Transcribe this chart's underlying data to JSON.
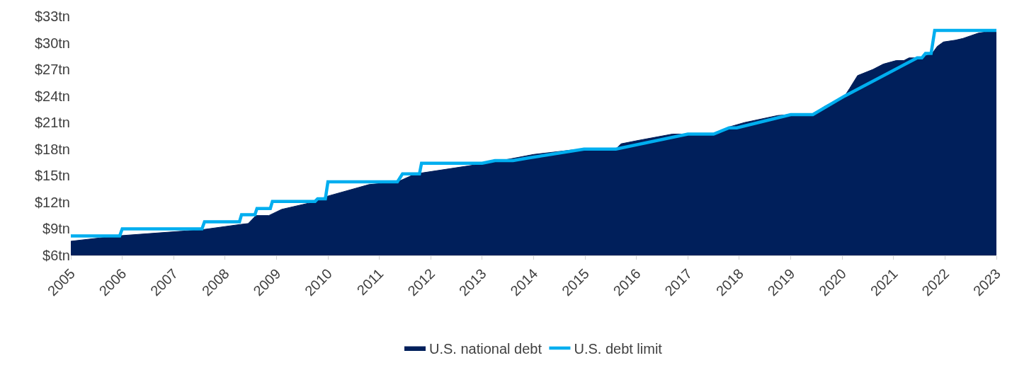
{
  "chart_data": {
    "type": "area",
    "xlim": [
      2005,
      2023
    ],
    "xticks": [
      2005,
      2006,
      2007,
      2008,
      2009,
      2010,
      2011,
      2012,
      2013,
      2014,
      2015,
      2016,
      2017,
      2018,
      2019,
      2020,
      2021,
      2022,
      2023
    ],
    "ylim": [
      6,
      33
    ],
    "yticks": [
      {
        "value": 6,
        "label": "$6tn"
      },
      {
        "value": 9,
        "label": "$9tn"
      },
      {
        "value": 12,
        "label": "$12tn"
      },
      {
        "value": 15,
        "label": "$15tn"
      },
      {
        "value": 18,
        "label": "$18tn"
      },
      {
        "value": 21,
        "label": "$21tn"
      },
      {
        "value": 24,
        "label": "$24tn"
      },
      {
        "value": 27,
        "label": "$27tn"
      },
      {
        "value": 30,
        "label": "$30tn"
      },
      {
        "value": 33,
        "label": "$33tn"
      }
    ],
    "legend": "bottom",
    "series": [
      {
        "name": "U.S. national debt",
        "color": "#001f5b",
        "x": [
          2005,
          2005.9,
          2007.55,
          2008.3,
          2008.45,
          2008.6,
          2008.85,
          2009.1,
          2009.7,
          2010.0,
          2010.8,
          2011.35,
          2011.7,
          2012.95,
          2013.55,
          2014.0,
          2014.75,
          2015.0,
          2015.6,
          2015.7,
          2016.05,
          2016.7,
          2017.0,
          2017.5,
          2017.8,
          2018.1,
          2018.75,
          2019.0,
          2019.43,
          2019.65,
          2020.05,
          2020.15,
          2020.3,
          2020.6,
          2020.8,
          2021.05,
          2021.2,
          2021.3,
          2021.5,
          2021.75,
          2021.85,
          2021.97,
          2022.2,
          2022.35,
          2022.5,
          2022.65,
          2023.0
        ],
        "values": [
          7.6,
          8.2,
          8.9,
          9.5,
          9.6,
          10.5,
          10.5,
          11.2,
          12.0,
          12.7,
          14.0,
          14.3,
          15.2,
          16.3,
          16.9,
          17.4,
          17.9,
          18.0,
          18.0,
          18.6,
          19.0,
          19.7,
          19.7,
          19.7,
          20.5,
          21.0,
          21.8,
          21.9,
          21.9,
          22.8,
          24.0,
          24.9,
          26.3,
          27.0,
          27.6,
          28.0,
          28.0,
          28.3,
          28.3,
          28.8,
          29.6,
          30.1,
          30.3,
          30.5,
          30.8,
          31.1,
          31.4
        ]
      },
      {
        "name": "U.S. debt limit",
        "type": "line",
        "color": "#00aeef",
        "x": [
          2005,
          2005.95,
          2006.0,
          2007.55,
          2007.6,
          2008.28,
          2008.32,
          2008.58,
          2008.62,
          2008.88,
          2008.92,
          2009.75,
          2009.8,
          2009.95,
          2010.0,
          2011.35,
          2011.45,
          2011.7,
          2011.78,
          2011.82,
          2013.0,
          2013.25,
          2013.6,
          2013.9,
          2014.98,
          2015.6,
          2017.0,
          2017.5,
          2017.8,
          2017.95,
          2019.0,
          2019.43,
          2020.05,
          2021.46,
          2021.55,
          2021.62,
          2021.73,
          2021.8,
          2023.0
        ],
        "values": [
          8.2,
          8.2,
          9.0,
          9.0,
          9.8,
          9.8,
          10.6,
          10.6,
          11.3,
          11.3,
          12.1,
          12.1,
          12.4,
          12.4,
          14.3,
          14.3,
          15.2,
          15.2,
          15.2,
          16.4,
          16.4,
          16.7,
          16.7,
          17.0,
          18.0,
          18.0,
          19.7,
          19.7,
          20.4,
          20.4,
          21.9,
          21.9,
          24.0,
          28.3,
          28.3,
          28.8,
          28.8,
          31.4,
          31.4
        ]
      }
    ]
  }
}
